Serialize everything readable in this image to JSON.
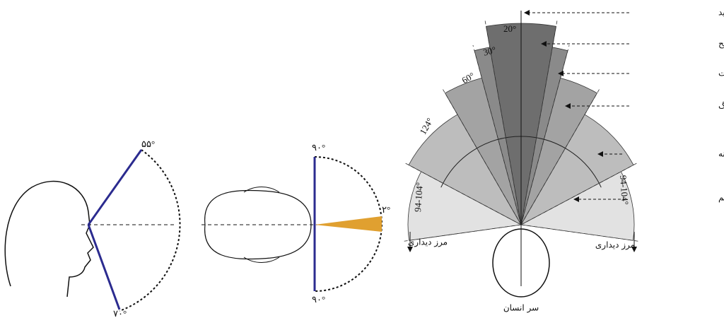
{
  "field_of_view": {
    "angles": [
      "20°",
      "30°",
      "60°",
      "124°",
      "94-104°",
      "94-104°"
    ],
    "zones": [
      "محور دید",
      "محدوده دید واضح",
      "محدوده تشخیص کلمات",
      "محدوده تشخیص رنگ",
      "محدوده چرخش دید بهینه",
      "محدوده دید یک چشم"
    ],
    "boundary_labels": [
      "مرز دیداری",
      "مرز دیداری"
    ],
    "head_label": "سر انسان"
  },
  "side_view": {
    "angles": [
      "۵۵°",
      "۷۰°"
    ]
  },
  "top_view": {
    "angles": [
      "۹۰°",
      "۹۰°",
      "۲°"
    ]
  }
}
